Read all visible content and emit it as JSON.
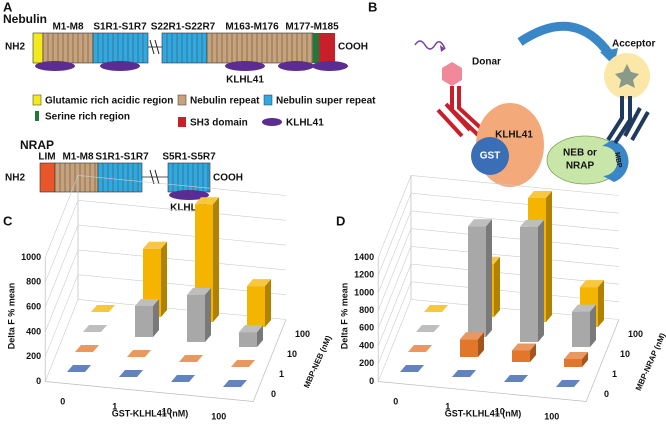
{
  "panel_a": "A",
  "panel_b": "B",
  "nebulin": {
    "title": "Nebulin",
    "nh2": "NH2",
    "cooh": "COOH",
    "regions": [
      "M1-M8",
      "S1R1-S1R7",
      "S22R1-S22R7",
      "M163-M176",
      "M177-M185"
    ],
    "binding": "KLHL41"
  },
  "legend": [
    "Glutamic rich acidic region",
    "Nebulin repeat",
    "Nebulin super repeat",
    "Serine rich region",
    "SH3 domain",
    "KLHL41"
  ],
  "nrap": {
    "title": "NRAP",
    "nh2": "NH2",
    "cooh": "COOH",
    "regions": [
      "LIM",
      "M1-M8",
      "S1R1-S1R7",
      "S5R1-S5R7"
    ],
    "binding": "KLHL41"
  },
  "assay": {
    "donor": "Donar",
    "acceptor": "Acceptor",
    "gst": "GST",
    "bait": "KLHL41",
    "prey": [
      "NEB or",
      "NRAP"
    ],
    "tag": "MBP"
  },
  "chart_data": [
    {
      "panel": "C",
      "type": "bar3d",
      "ylabel": "Delta F % mean",
      "xlabel": "GST-KLHL41 (nM)",
      "zlabel": "MBP-NEB (nM)",
      "categories": [
        "0",
        "1",
        "10",
        "100"
      ],
      "series": [
        {
          "name": "0",
          "color": "#2e5aa8",
          "values": [
            0,
            0,
            0,
            0
          ]
        },
        {
          "name": "1",
          "color": "#e2762a",
          "values": [
            0,
            0,
            0,
            0
          ]
        },
        {
          "name": "10",
          "color": "#a8a8a8",
          "values": [
            0,
            250,
            380,
            120
          ]
        },
        {
          "name": "100",
          "color": "#f4b400",
          "values": [
            0,
            550,
            950,
            330
          ]
        }
      ],
      "ylim": [
        0,
        1000
      ],
      "yticks": [
        0,
        200,
        400,
        600,
        800,
        1000
      ]
    },
    {
      "panel": "D",
      "type": "bar3d",
      "ylabel": "Delta F % mean",
      "xlabel": "GST-KLHL41 (nM)",
      "zlabel": "MBP-NRAP (nM)",
      "categories": [
        "0",
        "1",
        "10",
        "100"
      ],
      "series": [
        {
          "name": "0",
          "color": "#2e5aa8",
          "values": [
            0,
            0,
            0,
            0
          ]
        },
        {
          "name": "1",
          "color": "#e2762a",
          "values": [
            0,
            200,
            130,
            90
          ]
        },
        {
          "name": "10",
          "color": "#a8a8a8",
          "values": [
            0,
            1250,
            1300,
            400
          ]
        },
        {
          "name": "100",
          "color": "#f4b400",
          "values": [
            0,
            600,
            1400,
            450
          ]
        }
      ],
      "ylim": [
        0,
        1400
      ],
      "yticks": [
        0,
        200,
        400,
        600,
        800,
        1000,
        1200,
        1400
      ]
    }
  ]
}
